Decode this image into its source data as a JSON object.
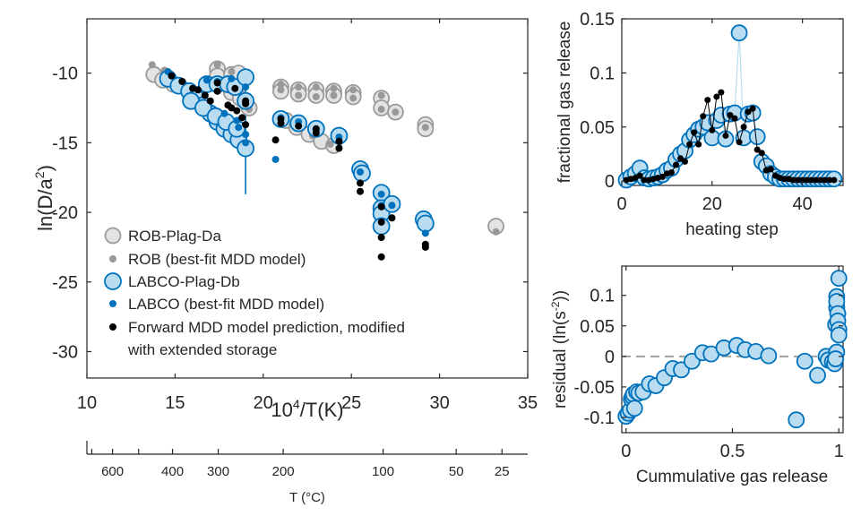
{
  "chart_data": [
    {
      "id": "arrhenius",
      "type": "scatter",
      "title": "",
      "xlabel": "10^4/T(K)",
      "ylabel": "ln(D/a^2)",
      "xlim": [
        10,
        35
      ],
      "ylim": [
        -31.9,
        -6.1
      ],
      "xticks": [
        10,
        15,
        20,
        25,
        30,
        35
      ],
      "yticks": [
        -10,
        -15,
        -20,
        -25,
        -30
      ],
      "xtick_labels": [
        "10",
        "15",
        "20",
        "25",
        "30",
        "35"
      ],
      "ytick_labels": [
        "-10",
        "-15",
        "-20",
        "-25",
        "-30"
      ],
      "legend_position": "lower-left",
      "legend": [
        {
          "label": "ROB-Plag-Da",
          "series": "rob_data"
        },
        {
          "label": "ROB (best-fit MDD model)",
          "series": "rob_model"
        },
        {
          "label": "LABCO-Plag-Db",
          "series": "labco_data"
        },
        {
          "label": "LABCO (best-fit MDD model)",
          "series": "labco_model"
        },
        {
          "label": "Forward MDD model prediction, modified",
          "label2": "with extended storage",
          "series": "forward"
        }
      ],
      "secondary_axis": {
        "label": "T (°C)",
        "ticks": [
          600,
          400,
          300,
          200,
          100,
          50,
          25
        ],
        "tick_labels": [
          "600",
          "400",
          "300",
          "200",
          "100",
          "50",
          "25"
        ],
        "minor_ticks_celsius": [
          500
        ]
      },
      "series": [
        {
          "name": "rob_data",
          "style": "large-gray-circle",
          "x": [
            13.8,
            14.3,
            14.9,
            17.4,
            17.4,
            18.2,
            18.2,
            18.7,
            18.6,
            19.2,
            21.0,
            21.0,
            22.0,
            22.0,
            23.0,
            23.0,
            24.0,
            24.0,
            25.1,
            25.1,
            26.7,
            26.7,
            27.5,
            29.2,
            29.2,
            33.2,
            21.3,
            21.9,
            22.6,
            23.3,
            24.0
          ],
          "y": [
            -10.1,
            -10.5,
            -10.8,
            -9.7,
            -10.2,
            -10.1,
            -11.4,
            -11.8,
            -10.0,
            -12.5,
            -11.0,
            -11.3,
            -11.2,
            -11.5,
            -11.2,
            -11.6,
            -11.3,
            -11.6,
            -11.4,
            -11.7,
            -11.8,
            -12.5,
            -12.8,
            -13.7,
            -14.0,
            -21.0,
            -13.4,
            -13.9,
            -14.4,
            -14.9,
            -15.2
          ]
        },
        {
          "name": "rob_model",
          "style": "small-gray-dot",
          "x": [
            13.7,
            14.4,
            17.4,
            17.4,
            18.2,
            18.2,
            18.7,
            19.2,
            21.0,
            21.0,
            22.0,
            22.0,
            23.0,
            23.0,
            24.0,
            24.0,
            25.1,
            25.1,
            26.7,
            26.7,
            27.5,
            29.2,
            33.2,
            21.8,
            22.8,
            23.8
          ],
          "y": [
            -9.4,
            -9.8,
            -9.4,
            -10.6,
            -9.9,
            -11.3,
            -10.7,
            -12.6,
            -10.8,
            -11.2,
            -11.0,
            -11.6,
            -11.0,
            -11.7,
            -11.1,
            -11.6,
            -11.2,
            -11.8,
            -11.6,
            -12.6,
            -12.8,
            -13.9,
            -21.4,
            -13.6,
            -14.5,
            -15.1
          ]
        },
        {
          "name": "labco_data",
          "style": "large-blue-circle",
          "x": [
            14.6,
            15.2,
            15.8,
            16.2,
            16.6,
            17.0,
            17.4,
            17.8,
            18.2,
            18.6,
            19.0,
            16.8,
            17.4,
            18.0,
            18.4,
            19.0,
            19.0,
            15.9,
            16.6,
            17.3,
            17.9,
            18.5,
            21.0,
            22.0,
            23.0,
            24.3,
            25.5,
            25.6,
            26.7,
            26.7,
            26.7,
            26.7,
            27.3,
            29.1,
            29.2
          ],
          "y": [
            -10.4,
            -10.9,
            -11.3,
            -11.8,
            -12.3,
            -12.9,
            -13.5,
            -14.0,
            -14.4,
            -14.8,
            -15.4,
            -10.8,
            -10.8,
            -10.8,
            -11.0,
            -10.3,
            -12.0,
            -12.0,
            -12.5,
            -13.1,
            -13.5,
            -14.0,
            -13.3,
            -13.6,
            -14.0,
            -14.5,
            -16.9,
            -17.2,
            -18.6,
            -19.7,
            -20.1,
            -21.0,
            -19.4,
            -20.5,
            -20.8
          ]
        },
        {
          "name": "labco_model",
          "style": "small-blue-dot",
          "x": [
            14.6,
            16.8,
            17.4,
            18.2,
            18.6,
            19.0,
            19.0,
            19.0,
            19.0,
            20.7,
            21.0,
            22.0,
            23.0,
            24.3,
            25.5,
            26.7,
            26.7,
            27.3,
            29.2,
            17.8,
            18.5
          ],
          "y": [
            -9.9,
            -10.5,
            -10.6,
            -10.4,
            -13.9,
            -11.0,
            -12.0,
            -14.4,
            -15.0,
            -16.2,
            -13.2,
            -13.5,
            -14.1,
            -14.6,
            -17.1,
            -18.7,
            -19.5,
            -19.5,
            -21.5,
            -12.9,
            -13.4
          ],
          "error_bar": {
            "x": 19.0,
            "y_low": -18.7,
            "y_high": -10.0
          }
        },
        {
          "name": "forward",
          "style": "small-black-dot",
          "x": [
            14.8,
            15.4,
            16.0,
            16.3,
            16.7,
            17.0,
            17.4,
            17.4,
            18.0,
            18.2,
            18.5,
            18.8,
            18.4,
            19.0,
            19.0,
            19.0,
            20.7,
            21.0,
            21.0,
            22.0,
            23.0,
            23.0,
            24.3,
            24.3,
            25.5,
            25.5,
            26.7,
            26.7,
            26.7,
            26.7,
            27.3,
            29.2,
            29.2
          ],
          "y": [
            -10.2,
            -10.6,
            -11.1,
            -11.2,
            -11.6,
            -12.0,
            -11.3,
            -10.7,
            -12.3,
            -12.5,
            -12.7,
            -13.2,
            -11.1,
            -12.0,
            -12.2,
            -13.7,
            -14.8,
            -13.3,
            -13.6,
            -13.8,
            -14.0,
            -14.3,
            -14.9,
            -15.4,
            -17.9,
            -18.5,
            -19.6,
            -20.7,
            -21.8,
            -23.2,
            -20.4,
            -22.3,
            -22.5
          ]
        }
      ]
    },
    {
      "id": "gas-release",
      "type": "line",
      "title": "",
      "xlabel": "heating step",
      "ylabel": "fractional gas release",
      "xlim": [
        0,
        49
      ],
      "ylim": [
        -0.004,
        0.15
      ],
      "xticks": [
        0,
        20,
        40
      ],
      "yticks": [
        0,
        0.05,
        0.1,
        0.15
      ],
      "xtick_labels": [
        "0",
        "20",
        "40"
      ],
      "ytick_labels": [
        "0",
        "0.05",
        "0.1",
        "0.15"
      ],
      "series": [
        {
          "name": "measured",
          "style": "large-blue-circle-line",
          "x": [
            1,
            2,
            3,
            4,
            5,
            6,
            7,
            8,
            9,
            10,
            11,
            12,
            13,
            14,
            15,
            16,
            17,
            18,
            19,
            20,
            21,
            22,
            23,
            24,
            25,
            26,
            27,
            28,
            29,
            30,
            31,
            32,
            33,
            34,
            35,
            36,
            37,
            38,
            39,
            40,
            41,
            42,
            43,
            44,
            45,
            46,
            47
          ],
          "y": [
            0.001,
            0.004,
            0.007,
            0.012,
            0.003,
            0.002,
            0.003,
            0.004,
            0.006,
            0.01,
            0.012,
            0.02,
            0.025,
            0.028,
            0.038,
            0.043,
            0.048,
            0.05,
            0.054,
            0.04,
            0.056,
            0.061,
            0.039,
            0.062,
            0.063,
            0.137,
            0.04,
            0.062,
            0.063,
            0.041,
            0.018,
            0.014,
            0.007,
            0.004,
            0.002,
            0.002,
            0.002,
            0.002,
            0.002,
            0.002,
            0.002,
            0.002,
            0.002,
            0.002,
            0.002,
            0.002,
            0.002
          ]
        },
        {
          "name": "model",
          "style": "small-black-dot-line",
          "x": [
            1,
            2,
            3,
            4,
            5,
            6,
            7,
            8,
            9,
            10,
            11,
            12,
            13,
            14,
            15,
            16,
            17,
            18,
            19,
            20,
            21,
            22,
            23,
            24,
            25,
            26,
            27,
            28,
            29,
            30,
            31,
            32,
            33,
            34,
            35,
            36,
            37,
            38,
            39,
            40,
            41,
            42,
            43,
            44,
            45,
            46,
            47
          ],
          "y": [
            0.001,
            0.002,
            0.003,
            0.005,
            0.001,
            0.001,
            0.002,
            0.003,
            0.004,
            0.007,
            0.008,
            0.015,
            0.021,
            0.018,
            0.034,
            0.045,
            0.034,
            0.06,
            0.075,
            0.047,
            0.078,
            0.082,
            0.042,
            0.061,
            0.058,
            0.036,
            0.05,
            0.064,
            0.067,
            0.029,
            0.026,
            0.01,
            0.011,
            0.005,
            0.003,
            0.002,
            0.002,
            0.001,
            0.001,
            0.001,
            0.001,
            0.001,
            0.001,
            0.001,
            0.001,
            0.001,
            0.001
          ]
        }
      ]
    },
    {
      "id": "residual",
      "type": "scatter",
      "title": "",
      "xlabel": "Cummulative gas release",
      "ylabel": "residual (ln(s^-2))",
      "xlim": [
        -0.02,
        1.02
      ],
      "ylim": [
        -0.125,
        0.148
      ],
      "xticks": [
        0,
        0.5,
        1
      ],
      "yticks": [
        -0.1,
        -0.05,
        0,
        0.05,
        0.1
      ],
      "xtick_labels": [
        "0",
        "0.5",
        "1"
      ],
      "ytick_labels": [
        "-0.1",
        "-0.05",
        "0",
        "0.05",
        "0.1"
      ],
      "reference_line": {
        "y": 0,
        "style": "dashed-gray"
      },
      "series": [
        {
          "name": "residuals",
          "style": "large-blue-circle",
          "x": [
            0.0,
            0.01,
            0.02,
            0.025,
            0.03,
            0.035,
            0.04,
            0.05,
            0.06,
            0.08,
            0.11,
            0.14,
            0.18,
            0.22,
            0.26,
            0.31,
            0.36,
            0.4,
            0.46,
            0.52,
            0.56,
            0.61,
            0.67,
            0.8,
            0.84,
            0.9,
            0.94,
            0.95,
            0.97,
            0.98,
            0.985,
            0.99,
            0.99,
            0.99,
            0.995,
            0.995,
            1.0,
            1.0,
            1.0,
            0.99,
            0.985
          ],
          "y": [
            -0.098,
            -0.093,
            -0.088,
            -0.07,
            -0.066,
            -0.062,
            -0.085,
            -0.058,
            -0.06,
            -0.058,
            -0.045,
            -0.048,
            -0.035,
            -0.02,
            -0.022,
            -0.008,
            0.006,
            0.004,
            0.014,
            0.018,
            0.011,
            0.008,
            0.001,
            -0.104,
            -0.008,
            -0.031,
            0.0,
            -0.006,
            -0.009,
            -0.012,
            0.052,
            0.08,
            0.098,
            0.09,
            0.07,
            0.058,
            0.128,
            0.044,
            0.035,
            0.007,
            -0.004
          ]
        }
      ]
    }
  ]
}
